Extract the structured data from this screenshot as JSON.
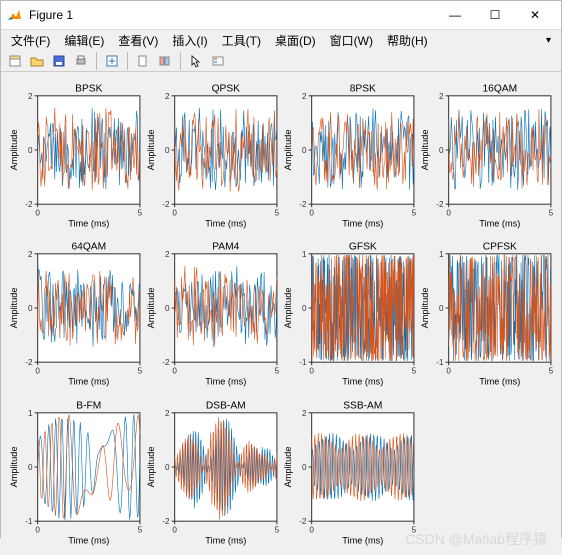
{
  "window": {
    "title": "Figure 1"
  },
  "menu": {
    "file": "文件(F)",
    "edit": "编辑(E)",
    "view": "查看(V)",
    "insert": "插入(I)",
    "tools": "工具(T)",
    "desktop": "桌面(D)",
    "window": "窗口(W)",
    "help": "帮助(H)"
  },
  "winbtns": {
    "min": "—",
    "max": "☐",
    "close": "✕"
  },
  "toolbar_icons": [
    "new",
    "open",
    "save",
    "print",
    "|",
    "link",
    "|",
    "box",
    "panel",
    "|",
    "arrow",
    "select"
  ],
  "watermark": "CSDN @Matlab程序猿",
  "chart_style": {
    "series_colors": [
      "#0072bd",
      "#d95319"
    ],
    "background": "#ffffff",
    "axis_color": "#333333",
    "grid_color": "#e0e0e0",
    "title_fontsize": 10,
    "label_fontsize": 9,
    "tick_fontsize": 8,
    "line_width": 0.6
  },
  "axis": {
    "xlabel": "Time (ms)",
    "ylabel": "Amplitude",
    "xlim": [
      0,
      5
    ],
    "xticks": [
      0,
      5
    ],
    "xtick_labels": [
      "0",
      "5"
    ]
  },
  "subplots": [
    {
      "title": "BPSK",
      "ylim": [
        -2,
        2
      ],
      "yticks": [
        -2,
        0,
        2
      ],
      "ytick_labels": [
        "-2",
        "0",
        "2"
      ],
      "type": "noisy",
      "density": 1.0,
      "amp": 1.8,
      "seed": 1
    },
    {
      "title": "QPSK",
      "ylim": [
        -2,
        2
      ],
      "yticks": [
        -2,
        0,
        2
      ],
      "ytick_labels": [
        "-2",
        "0",
        "2"
      ],
      "type": "noisy",
      "density": 1.0,
      "amp": 1.8,
      "seed": 2
    },
    {
      "title": "8PSK",
      "ylim": [
        -2,
        2
      ],
      "yticks": [
        -2,
        0,
        2
      ],
      "ytick_labels": [
        "-2",
        "0",
        "2"
      ],
      "type": "noisy",
      "density": 1.0,
      "amp": 1.8,
      "seed": 3
    },
    {
      "title": "16QAM",
      "ylim": [
        -2,
        2
      ],
      "yticks": [
        -2,
        0,
        2
      ],
      "ytick_labels": [
        "-2",
        "0",
        "2"
      ],
      "type": "noisy",
      "density": 1.0,
      "amp": 1.8,
      "seed": 4
    },
    {
      "title": "64QAM",
      "ylim": [
        -2,
        2
      ],
      "yticks": [
        -2,
        0,
        2
      ],
      "ytick_labels": [
        "-2",
        "0",
        "2"
      ],
      "type": "noisy",
      "density": 1.0,
      "amp": 1.8,
      "seed": 5
    },
    {
      "title": "PAM4",
      "ylim": [
        -2,
        2
      ],
      "yticks": [
        -2,
        0,
        2
      ],
      "ytick_labels": [
        "-2",
        "0",
        "2"
      ],
      "type": "noisy",
      "density": 1.0,
      "amp": 1.8,
      "seed": 6
    },
    {
      "title": "GFSK",
      "ylim": [
        -1,
        1
      ],
      "yticks": [
        -1,
        0,
        1
      ],
      "ytick_labels": [
        "-1",
        "0",
        "1"
      ],
      "type": "dense",
      "density": 2.5,
      "amp": 0.98,
      "seed": 7
    },
    {
      "title": "CPFSK",
      "ylim": [
        -1,
        1
      ],
      "yticks": [
        -1,
        0,
        1
      ],
      "ytick_labels": [
        "-1",
        "0",
        "1"
      ],
      "type": "dense",
      "density": 2.0,
      "amp": 0.98,
      "seed": 8
    },
    {
      "title": "B-FM",
      "ylim": [
        -1,
        1
      ],
      "yticks": [
        -1,
        0,
        1
      ],
      "ytick_labels": [
        "-1",
        "0",
        "1"
      ],
      "type": "fm",
      "density": 1.0,
      "amp": 0.98,
      "seed": 9
    },
    {
      "title": "DSB-AM",
      "ylim": [
        -2,
        2
      ],
      "yticks": [
        -2,
        0,
        2
      ],
      "ytick_labels": [
        "-2",
        "0",
        "2"
      ],
      "type": "dsb",
      "density": 2.2,
      "amp": 1.9,
      "seed": 10
    },
    {
      "title": "SSB-AM",
      "ylim": [
        -2,
        2
      ],
      "yticks": [
        -2,
        0,
        2
      ],
      "ytick_labels": [
        "-2",
        "0",
        "2"
      ],
      "type": "ssb",
      "density": 1.8,
      "amp": 1.8,
      "seed": 11
    }
  ]
}
